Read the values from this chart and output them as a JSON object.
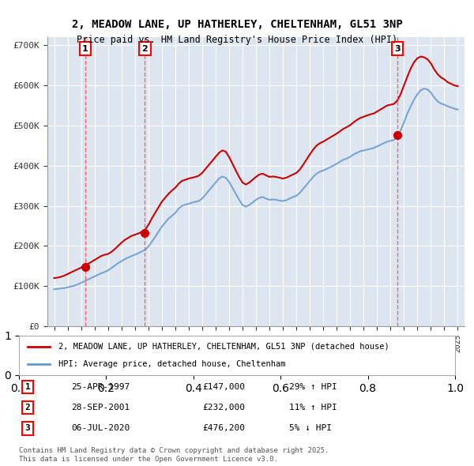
{
  "title": "2, MEADOW LANE, UP HATHERLEY, CHELTENHAM, GL51 3NP",
  "subtitle": "Price paid vs. HM Land Registry's House Price Index (HPI)",
  "ylabel": "",
  "xlabel": "",
  "background_color": "#e8eef8",
  "plot_bg_color": "#dde6f0",
  "ylim": [
    0,
    720000
  ],
  "yticks": [
    0,
    100000,
    200000,
    300000,
    400000,
    500000,
    600000,
    700000
  ],
  "ytick_labels": [
    "£0",
    "£100K",
    "£200K",
    "£300K",
    "£400K",
    "£500K",
    "£600K",
    "£700K"
  ],
  "xlim_start": 1994.5,
  "xlim_end": 2025.5,
  "transactions": [
    {
      "date_label": "25-APR-1997",
      "year": 1997.32,
      "price": 147000,
      "pct": "29%",
      "direction": "↑",
      "label": "1"
    },
    {
      "date_label": "28-SEP-2001",
      "year": 2001.75,
      "price": 232000,
      "pct": "11%",
      "direction": "↑",
      "label": "2"
    },
    {
      "date_label": "06-JUL-2020",
      "year": 2020.52,
      "price": 476200,
      "pct": "5%",
      "direction": "↓",
      "label": "3"
    }
  ],
  "legend_house": "2, MEADOW LANE, UP HATHERLEY, CHELTENHAM, GL51 3NP (detached house)",
  "legend_hpi": "HPI: Average price, detached house, Cheltenham",
  "footer": "Contains HM Land Registry data © Crown copyright and database right 2025.\nThis data is licensed under the Open Government Licence v3.0.",
  "house_color": "#cc0000",
  "hpi_color": "#6699cc",
  "marker_color": "#cc0000",
  "vline_color": "#ff4444",
  "hpi_data_x": [
    1995.0,
    1995.25,
    1995.5,
    1995.75,
    1996.0,
    1996.25,
    1996.5,
    1996.75,
    1997.0,
    1997.25,
    1997.5,
    1997.75,
    1998.0,
    1998.25,
    1998.5,
    1998.75,
    1999.0,
    1999.25,
    1999.5,
    1999.75,
    2000.0,
    2000.25,
    2000.5,
    2000.75,
    2001.0,
    2001.25,
    2001.5,
    2001.75,
    2002.0,
    2002.25,
    2002.5,
    2002.75,
    2003.0,
    2003.25,
    2003.5,
    2003.75,
    2004.0,
    2004.25,
    2004.5,
    2004.75,
    2005.0,
    2005.25,
    2005.5,
    2005.75,
    2006.0,
    2006.25,
    2006.5,
    2006.75,
    2007.0,
    2007.25,
    2007.5,
    2007.75,
    2008.0,
    2008.25,
    2008.5,
    2008.75,
    2009.0,
    2009.25,
    2009.5,
    2009.75,
    2010.0,
    2010.25,
    2010.5,
    2010.75,
    2011.0,
    2011.25,
    2011.5,
    2011.75,
    2012.0,
    2012.25,
    2012.5,
    2012.75,
    2013.0,
    2013.25,
    2013.5,
    2013.75,
    2014.0,
    2014.25,
    2014.5,
    2014.75,
    2015.0,
    2015.25,
    2015.5,
    2015.75,
    2016.0,
    2016.25,
    2016.5,
    2016.75,
    2017.0,
    2017.25,
    2017.5,
    2017.75,
    2018.0,
    2018.25,
    2018.5,
    2018.75,
    2019.0,
    2019.25,
    2019.5,
    2019.75,
    2020.0,
    2020.25,
    2020.5,
    2020.75,
    2021.0,
    2021.25,
    2021.5,
    2021.75,
    2022.0,
    2022.25,
    2022.5,
    2022.75,
    2023.0,
    2023.25,
    2023.5,
    2023.75,
    2024.0,
    2024.25,
    2024.5,
    2024.75,
    2025.0
  ],
  "hpi_data_y": [
    92000,
    93000,
    94000,
    95000,
    97000,
    99000,
    101000,
    104000,
    108000,
    112000,
    116000,
    120000,
    124000,
    128000,
    132000,
    135000,
    139000,
    145000,
    151000,
    157000,
    162000,
    167000,
    171000,
    175000,
    178000,
    182000,
    186000,
    190000,
    198000,
    210000,
    222000,
    235000,
    248000,
    258000,
    268000,
    275000,
    282000,
    293000,
    300000,
    303000,
    305000,
    308000,
    310000,
    312000,
    318000,
    328000,
    338000,
    348000,
    358000,
    368000,
    373000,
    370000,
    360000,
    345000,
    330000,
    315000,
    302000,
    298000,
    302000,
    308000,
    315000,
    320000,
    322000,
    318000,
    315000,
    316000,
    315000,
    313000,
    312000,
    314000,
    318000,
    322000,
    325000,
    332000,
    342000,
    352000,
    362000,
    372000,
    380000,
    385000,
    388000,
    392000,
    396000,
    400000,
    405000,
    410000,
    415000,
    418000,
    422000,
    428000,
    432000,
    436000,
    438000,
    440000,
    442000,
    444000,
    448000,
    452000,
    456000,
    460000,
    462000,
    464000,
    472000,
    488000,
    508000,
    530000,
    548000,
    565000,
    578000,
    588000,
    592000,
    590000,
    582000,
    570000,
    560000,
    555000,
    552000,
    548000,
    545000,
    542000,
    540000
  ],
  "house_data_x": [
    1995.0,
    1995.25,
    1995.5,
    1995.75,
    1996.0,
    1996.25,
    1996.5,
    1996.75,
    1997.0,
    1997.25,
    1997.5,
    1997.75,
    1998.0,
    1998.25,
    1998.5,
    1998.75,
    1999.0,
    1999.25,
    1999.5,
    1999.75,
    2000.0,
    2000.25,
    2000.5,
    2000.75,
    2001.0,
    2001.25,
    2001.5,
    2001.75,
    2002.0,
    2002.25,
    2002.5,
    2002.75,
    2003.0,
    2003.25,
    2003.5,
    2003.75,
    2004.0,
    2004.25,
    2004.5,
    2004.75,
    2005.0,
    2005.25,
    2005.5,
    2005.75,
    2006.0,
    2006.25,
    2006.5,
    2006.75,
    2007.0,
    2007.25,
    2007.5,
    2007.75,
    2008.0,
    2008.25,
    2008.5,
    2008.75,
    2009.0,
    2009.25,
    2009.5,
    2009.75,
    2010.0,
    2010.25,
    2010.5,
    2010.75,
    2011.0,
    2011.25,
    2011.5,
    2011.75,
    2012.0,
    2012.25,
    2012.5,
    2012.75,
    2013.0,
    2013.25,
    2013.5,
    2013.75,
    2014.0,
    2014.25,
    2014.5,
    2014.75,
    2015.0,
    2015.25,
    2015.5,
    2015.75,
    2016.0,
    2016.25,
    2016.5,
    2016.75,
    2017.0,
    2017.25,
    2017.5,
    2017.75,
    2018.0,
    2018.25,
    2018.5,
    2018.75,
    2019.0,
    2019.25,
    2019.5,
    2019.75,
    2020.0,
    2020.25,
    2020.5,
    2020.75,
    2021.0,
    2021.25,
    2021.5,
    2021.75,
    2022.0,
    2022.25,
    2022.5,
    2022.75,
    2023.0,
    2023.25,
    2023.5,
    2023.75,
    2024.0,
    2024.25,
    2024.5,
    2024.75,
    2025.0
  ],
  "house_data_y": [
    120000,
    121000,
    123000,
    126000,
    130000,
    134000,
    138000,
    142000,
    146000,
    150000,
    155000,
    160000,
    165000,
    170000,
    175000,
    178000,
    180000,
    185000,
    192000,
    200000,
    208000,
    215000,
    220000,
    225000,
    228000,
    231000,
    235000,
    240000,
    252000,
    268000,
    282000,
    296000,
    310000,
    320000,
    330000,
    338000,
    345000,
    355000,
    362000,
    365000,
    368000,
    370000,
    372000,
    375000,
    382000,
    392000,
    402000,
    412000,
    422000,
    432000,
    438000,
    435000,
    422000,
    405000,
    388000,
    372000,
    358000,
    353000,
    358000,
    365000,
    372000,
    378000,
    380000,
    376000,
    372000,
    373000,
    372000,
    370000,
    368000,
    370000,
    374000,
    378000,
    382000,
    390000,
    402000,
    415000,
    428000,
    440000,
    450000,
    456000,
    460000,
    465000,
    470000,
    475000,
    480000,
    486000,
    492000,
    496000,
    501000,
    508000,
    514000,
    519000,
    522000,
    525000,
    528000,
    530000,
    535000,
    540000,
    545000,
    550000,
    552000,
    554000,
    562000,
    578000,
    600000,
    622000,
    642000,
    658000,
    668000,
    672000,
    670000,
    665000,
    655000,
    640000,
    628000,
    620000,
    615000,
    608000,
    604000,
    600000,
    598000
  ]
}
